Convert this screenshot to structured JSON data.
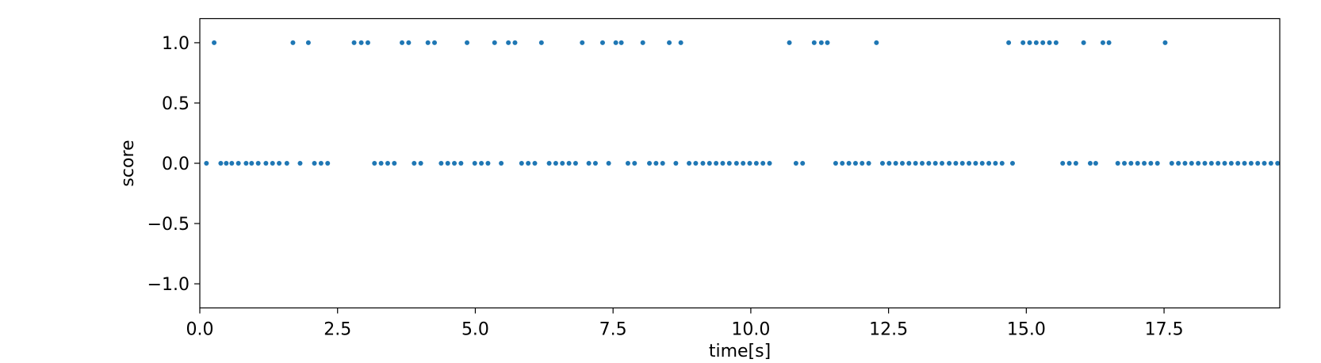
{
  "chart_data": {
    "type": "scatter",
    "title": "",
    "xlabel": "time[s]",
    "ylabel": "score",
    "xlim": [
      0,
      19.6
    ],
    "ylim": [
      -1.2,
      1.2
    ],
    "xticks": [
      0.0,
      2.5,
      5.0,
      7.5,
      10.0,
      12.5,
      15.0,
      17.5
    ],
    "xtick_labels": [
      "0.0",
      "2.5",
      "5.0",
      "7.5",
      "10.0",
      "12.5",
      "15.0",
      "17.5"
    ],
    "yticks": [
      1.0,
      0.5,
      0.0,
      -0.5,
      -1.0
    ],
    "ytick_labels": [
      "1.0",
      "0.5",
      "0.0",
      "−0.5",
      "−1.0"
    ],
    "grid": false,
    "marker_color": "#1f77b4",
    "series": [
      {
        "x": [
          0.12,
          0.26,
          0.38,
          0.48,
          0.58,
          0.7,
          0.84,
          0.94,
          1.06,
          1.2,
          1.32,
          1.44,
          1.58,
          1.69,
          1.82,
          1.97,
          2.08,
          2.2,
          2.32,
          2.8,
          2.93,
          3.05,
          3.17,
          3.29,
          3.41,
          3.53,
          3.67,
          3.79,
          3.89,
          4.01,
          4.14,
          4.26,
          4.38,
          4.5,
          4.62,
          4.74,
          4.85,
          4.99,
          5.11,
          5.23,
          5.35,
          5.47,
          5.6,
          5.72,
          5.84,
          5.96,
          6.08,
          6.2,
          6.34,
          6.46,
          6.58,
          6.7,
          6.82,
          6.94,
          7.06,
          7.18,
          7.31,
          7.42,
          7.55,
          7.65,
          7.77,
          7.89,
          8.04,
          8.16,
          8.28,
          8.4,
          8.52,
          8.64,
          8.73,
          8.88,
          9.0,
          9.13,
          9.25,
          9.37,
          9.49,
          9.61,
          9.74,
          9.86,
          9.98,
          10.1,
          10.22,
          10.34,
          10.7,
          10.82,
          10.94,
          11.15,
          11.28,
          11.39,
          11.54,
          11.66,
          11.78,
          11.9,
          12.02,
          12.14,
          12.28,
          12.39,
          12.51,
          12.63,
          12.75,
          12.87,
          12.99,
          13.11,
          13.23,
          13.35,
          13.47,
          13.6,
          13.72,
          13.84,
          13.96,
          14.08,
          14.2,
          14.32,
          14.44,
          14.56,
          14.68,
          14.75,
          14.94,
          15.06,
          15.18,
          15.3,
          15.42,
          15.54,
          15.66,
          15.78,
          15.9,
          16.04,
          16.16,
          16.26,
          16.39,
          16.5,
          16.66,
          16.78,
          16.9,
          17.02,
          17.14,
          17.26,
          17.38,
          17.52,
          17.64,
          17.76,
          17.88,
          18.0,
          18.12,
          18.24,
          18.36,
          18.48,
          18.6,
          18.72,
          18.84,
          18.96,
          19.08,
          19.2,
          19.32,
          19.44,
          19.56
        ],
        "y": [
          0,
          1,
          0,
          0,
          0,
          0,
          0,
          0,
          0,
          0,
          0,
          0,
          0,
          1,
          0,
          1,
          0,
          0,
          0,
          1,
          1,
          1,
          0,
          0,
          0,
          0,
          1,
          1,
          0,
          0,
          1,
          1,
          0,
          0,
          0,
          0,
          1,
          0,
          0,
          0,
          1,
          0,
          1,
          1,
          0,
          0,
          0,
          1,
          0,
          0,
          0,
          0,
          0,
          1,
          0,
          0,
          1,
          0,
          1,
          1,
          0,
          0,
          1,
          0,
          0,
          0,
          1,
          0,
          1,
          0,
          0,
          0,
          0,
          0,
          0,
          0,
          0,
          0,
          0,
          0,
          0,
          0,
          1,
          0,
          0,
          1,
          1,
          1,
          0,
          0,
          0,
          0,
          0,
          0,
          1,
          0,
          0,
          0,
          0,
          0,
          0,
          0,
          0,
          0,
          0,
          0,
          0,
          0,
          0,
          0,
          0,
          0,
          0,
          0,
          1,
          0,
          1,
          1,
          1,
          1,
          1,
          1,
          0,
          0,
          0,
          1,
          0,
          0,
          1,
          1,
          0,
          0,
          0,
          0,
          0,
          0,
          0,
          1,
          0,
          0,
          0,
          0,
          0,
          0,
          0,
          0,
          0,
          0,
          0,
          0,
          0,
          0,
          0,
          0,
          0
        ]
      }
    ]
  }
}
